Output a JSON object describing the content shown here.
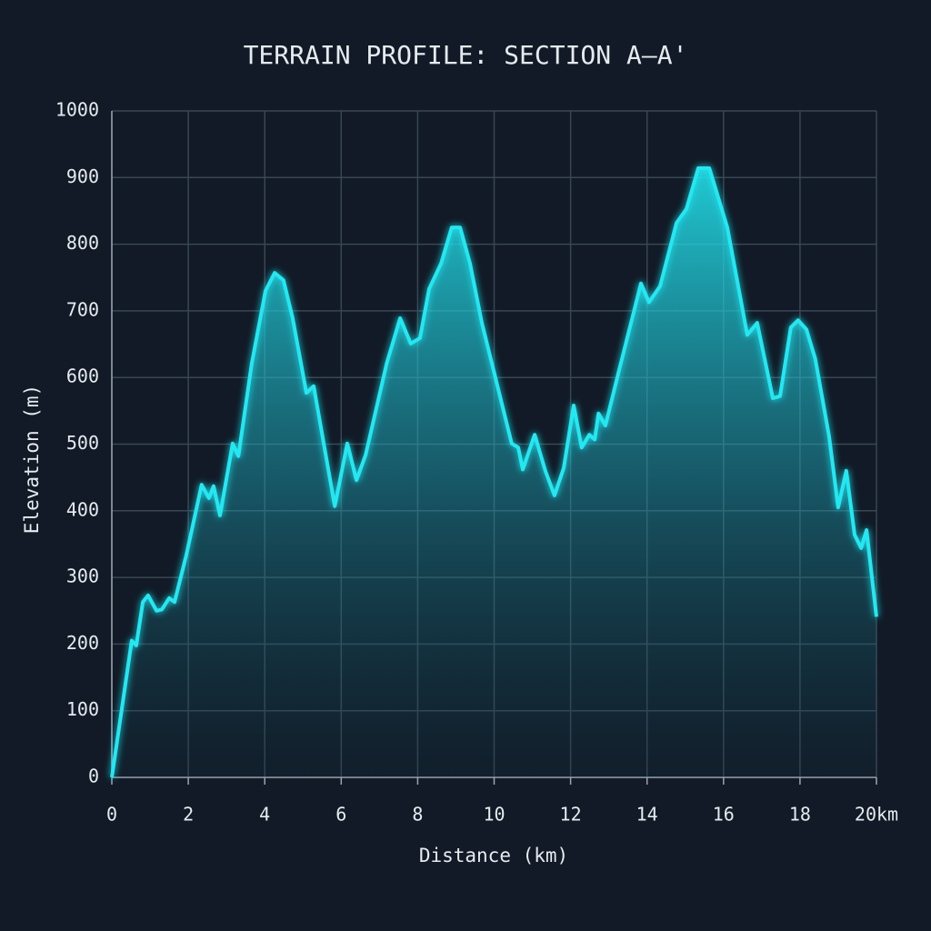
{
  "chart_data": {
    "type": "area",
    "title": "TERRAIN PROFILE: SECTION A–A'",
    "x_label": "Distance (km)",
    "y_label": "Elevation (m)",
    "color": "#22e8f2",
    "grid": true,
    "xlim": [
      0,
      20
    ],
    "ylim": [
      0,
      1000
    ],
    "xticks": [
      0,
      2,
      4,
      6,
      8,
      10,
      12,
      14,
      16,
      18,
      {
        "value": 20,
        "label": "20km"
      }
    ],
    "yticks": [
      0,
      100,
      200,
      300,
      400,
      500,
      600,
      700,
      800,
      900,
      1000
    ],
    "x": [
      0,
      0.52,
      0.64,
      0.81,
      0.95,
      1.17,
      1.31,
      1.5,
      1.64,
      1.95,
      2.35,
      2.54,
      2.66,
      2.83,
      3.16,
      3.31,
      3.66,
      4.02,
      4.26,
      4.49,
      4.73,
      5.09,
      5.28,
      5.83,
      6.16,
      6.4,
      6.64,
      7.19,
      7.54,
      7.82,
      8.06,
      8.3,
      8.61,
      8.89,
      9.11,
      9.37,
      9.68,
      10.46,
      10.63,
      10.75,
      11.06,
      11.34,
      11.58,
      11.82,
      12.08,
      12.29,
      12.49,
      12.63,
      12.73,
      12.91,
      13.25,
      13.84,
      14.05,
      14.34,
      14.77,
      15.03,
      15.34,
      15.63,
      16.1,
      16.62,
      16.88,
      17.29,
      17.48,
      17.76,
      17.95,
      18.17,
      18.4,
      18.76,
      19.0,
      19.21,
      19.43,
      19.6,
      19.74,
      20.0
    ],
    "values": [
      0,
      205,
      198,
      263,
      273,
      250,
      252,
      269,
      263,
      334,
      439,
      419,
      437,
      393,
      501,
      482,
      621,
      730,
      757,
      746,
      689,
      577,
      587,
      407,
      501,
      446,
      484,
      621,
      689,
      651,
      659,
      733,
      771,
      825,
      825,
      771,
      682,
      501,
      495,
      462,
      514,
      460,
      423,
      464,
      558,
      495,
      514,
      507,
      546,
      528,
      607,
      741,
      713,
      737,
      832,
      853,
      914,
      914,
      825,
      664,
      682,
      569,
      572,
      675,
      686,
      672,
      628,
      512,
      405,
      460,
      364,
      344,
      371,
      241
    ]
  }
}
